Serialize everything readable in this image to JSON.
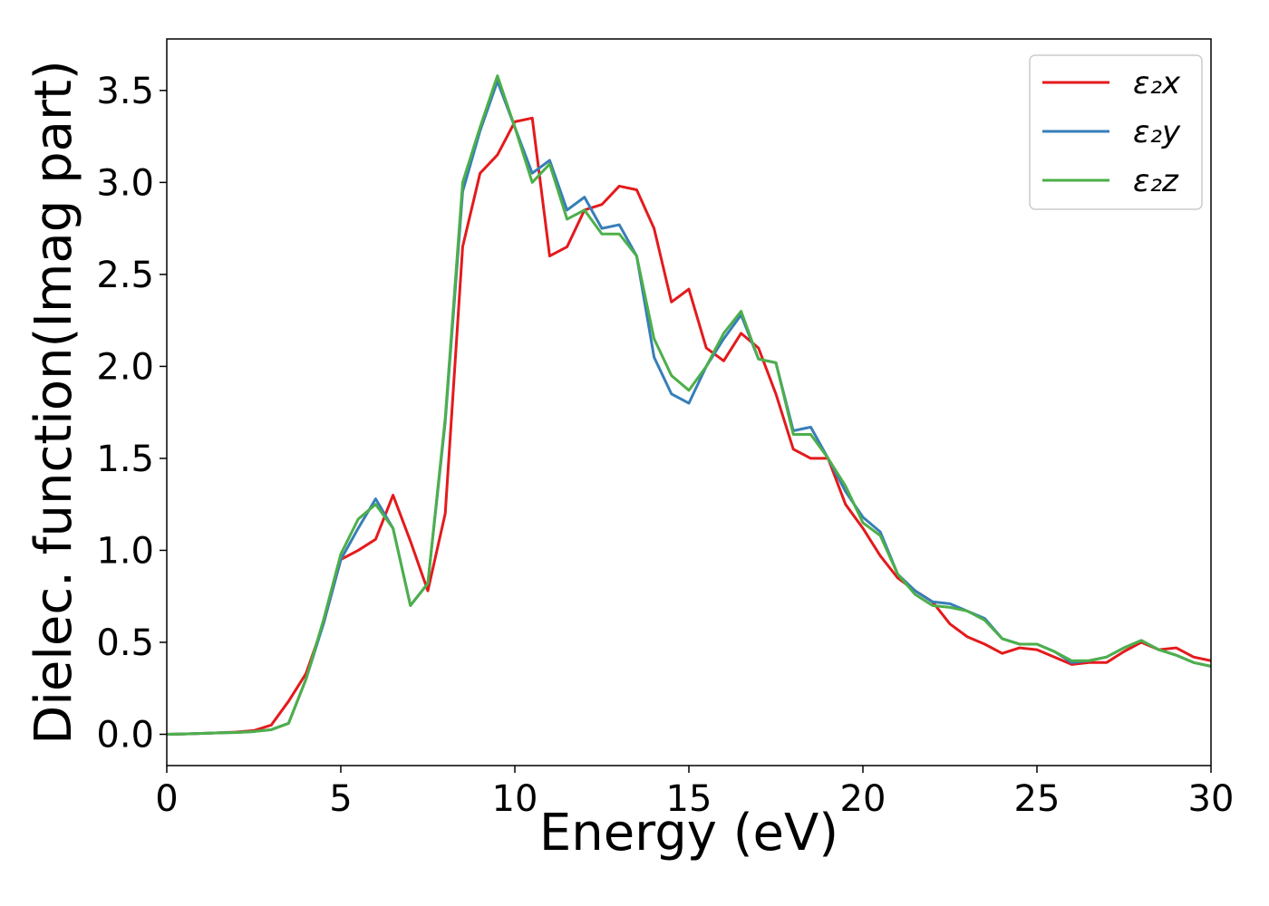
{
  "chart_data": {
    "type": "line",
    "x_label": "Energy (eV)",
    "y_label": "Dielec. function(Imag part)",
    "x": [
      0,
      0.5,
      1,
      1.5,
      2,
      2.5,
      3,
      3.5,
      4,
      4.5,
      5,
      5.5,
      6,
      6.5,
      7,
      7.5,
      8,
      8.5,
      9,
      9.5,
      10,
      10.5,
      11,
      11.5,
      12,
      12.5,
      13,
      13.5,
      14,
      14.5,
      15,
      15.5,
      16,
      16.5,
      17,
      17.5,
      18,
      18.5,
      19,
      19.5,
      20,
      20.5,
      21,
      21.5,
      22,
      22.5,
      23,
      23.5,
      24,
      24.5,
      25,
      25.5,
      26,
      26.5,
      27,
      27.5,
      28,
      28.5,
      29,
      29.5,
      30
    ],
    "series": [
      {
        "name": "ε₂x",
        "color": "#e41a1c",
        "values": [
          0,
          0.002,
          0.005,
          0.008,
          0.012,
          0.02,
          0.05,
          0.18,
          0.33,
          0.6,
          0.95,
          1.0,
          1.06,
          1.3,
          1.05,
          0.78,
          1.2,
          2.65,
          3.05,
          3.15,
          3.33,
          3.35,
          2.6,
          2.65,
          2.85,
          2.88,
          2.98,
          2.96,
          2.75,
          2.35,
          2.42,
          2.1,
          2.03,
          2.18,
          2.1,
          1.85,
          1.55,
          1.5,
          1.5,
          1.25,
          1.12,
          0.97,
          0.85,
          0.78,
          0.72,
          0.6,
          0.53,
          0.49,
          0.44,
          0.47,
          0.46,
          0.42,
          0.38,
          0.39,
          0.39,
          0.45,
          0.5,
          0.46,
          0.47,
          0.42,
          0.4
        ]
      },
      {
        "name": "ε₂y",
        "color": "#377eb8",
        "values": [
          0,
          0.002,
          0.005,
          0.008,
          0.01,
          0.015,
          0.025,
          0.06,
          0.3,
          0.6,
          0.95,
          1.12,
          1.28,
          1.12,
          0.7,
          0.82,
          1.7,
          2.95,
          3.28,
          3.55,
          3.3,
          3.05,
          3.12,
          2.85,
          2.92,
          2.75,
          2.77,
          2.6,
          2.05,
          1.85,
          1.8,
          2.0,
          2.15,
          2.28,
          2.04,
          2.02,
          1.65,
          1.67,
          1.5,
          1.32,
          1.18,
          1.1,
          0.87,
          0.78,
          0.72,
          0.71,
          0.67,
          0.63,
          0.52,
          0.49,
          0.49,
          0.45,
          0.39,
          0.4,
          0.42,
          0.47,
          0.51,
          0.46,
          0.43,
          0.39,
          0.37
        ]
      },
      {
        "name": "ε₂z",
        "color": "#4daf4a",
        "values": [
          0,
          0.002,
          0.005,
          0.008,
          0.01,
          0.015,
          0.025,
          0.06,
          0.3,
          0.62,
          0.98,
          1.17,
          1.25,
          1.12,
          0.7,
          0.82,
          1.72,
          3.0,
          3.3,
          3.58,
          3.3,
          3.0,
          3.1,
          2.8,
          2.85,
          2.72,
          2.72,
          2.6,
          2.15,
          1.95,
          1.87,
          2.0,
          2.18,
          2.3,
          2.04,
          2.02,
          1.63,
          1.63,
          1.5,
          1.35,
          1.15,
          1.08,
          0.87,
          0.76,
          0.7,
          0.69,
          0.67,
          0.62,
          0.52,
          0.49,
          0.49,
          0.45,
          0.4,
          0.4,
          0.42,
          0.47,
          0.51,
          0.46,
          0.43,
          0.39,
          0.37
        ]
      }
    ],
    "xlim": [
      0,
      30
    ],
    "ylim": [
      -0.17,
      3.78
    ],
    "xticks": [
      0,
      5,
      10,
      15,
      20,
      25,
      30
    ],
    "yticks": [
      {
        "value": 0,
        "label": "0.0"
      },
      0.5,
      {
        "value": 1,
        "label": "1.0"
      },
      1.5,
      {
        "value": 2,
        "label": "2.0"
      },
      2.5,
      {
        "value": 3,
        "label": "3.0"
      },
      3.5
    ],
    "legend": "upper right"
  }
}
